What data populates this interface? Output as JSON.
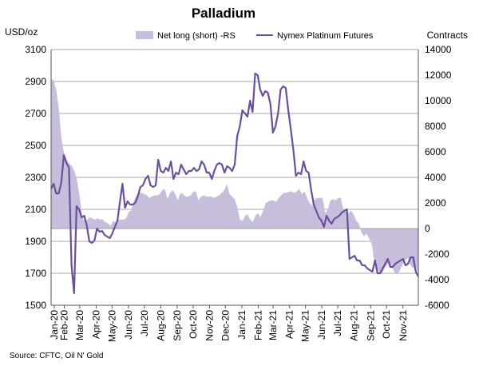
{
  "chart_data": {
    "type": "line",
    "title": "Palladium",
    "left_axis_unit": "USD/oz",
    "right_axis_unit": "Contracts",
    "source": "Source: CFTC, Oil N' Gold",
    "y_left": {
      "min": 1500,
      "max": 3100,
      "ticks": [
        "1500",
        "1700",
        "1900",
        "2100",
        "2300",
        "2500",
        "2700",
        "2900",
        "3100"
      ]
    },
    "y_right": {
      "min": -6000,
      "max": 14000,
      "ticks": [
        "-6000",
        "-4000",
        "-2000",
        "0",
        "2000",
        "4000",
        "6000",
        "8000",
        "10000",
        "12000",
        "14000"
      ]
    },
    "x_labels": [
      "Jan-20",
      "Feb-20",
      "Mar-20",
      "Apr-20",
      "May-20",
      "Jun-20",
      "Jul-20",
      "Aug-20",
      "Sep-20",
      "Oct-20",
      "Nov-20",
      "Dec-20",
      "Jan-21",
      "Feb-21",
      "Mar-21",
      "Apr-21",
      "May-21",
      "Jun-21",
      "Jul-21",
      "Aug-21",
      "Sep-21",
      "Oct-21",
      "Nov-21"
    ],
    "x_start": "2020-01-07",
    "x_end": "2021-11-30",
    "grid": true,
    "legend_position": "top",
    "series": [
      {
        "name": "Net long (short) -RS",
        "type": "area",
        "axis": "right",
        "color": "#c7bedb",
        "values": [
          11700,
          11600,
          10800,
          9400,
          7000,
          5900,
          5400,
          5100,
          4900,
          4500,
          3800,
          2600,
          900,
          600,
          700,
          900,
          800,
          700,
          800,
          700,
          700,
          500,
          400,
          200,
          600,
          500,
          700,
          700,
          700,
          800,
          1300,
          1400,
          2200,
          2600,
          2800,
          2800,
          2700,
          2600,
          2400,
          2500,
          2600,
          2600,
          2700,
          3000,
          3100,
          2300,
          2800,
          3000,
          2700,
          2200,
          2800,
          2700,
          2500,
          2500,
          2600,
          2900,
          2900,
          2200,
          2500,
          2600,
          2500,
          2500,
          2500,
          2400,
          2500,
          2600,
          2800,
          3000,
          3500,
          2700,
          2500,
          2300,
          1700,
          700,
          600,
          1000,
          1100,
          700,
          500,
          1000,
          1200,
          900,
          1400,
          2000,
          2100,
          2200,
          2200,
          2100,
          2400,
          2600,
          2800,
          2800,
          2900,
          2900,
          2800,
          2900,
          3100,
          2700,
          2900,
          2400,
          2000,
          1800,
          2300,
          2400,
          2400,
          2400,
          1200,
          1500,
          2200,
          2300,
          2200,
          2400,
          2400,
          1500,
          1300,
          1200,
          1400,
          1100,
          600,
          400,
          -300,
          -600,
          -400,
          -800,
          -1200,
          -2600,
          -3100,
          -3400,
          -3500,
          -3100,
          -2800,
          -2700,
          -3100,
          -3500,
          -3600,
          -3200,
          -2800,
          -2500,
          -2300,
          -2900,
          -3100,
          -2900,
          -3600
        ]
      },
      {
        "name": "Nymex Platinum Futures",
        "type": "line",
        "axis": "left",
        "color": "#6b4f9b",
        "values": [
          2230,
          2260,
          2200,
          2200,
          2270,
          2440,
          2390,
          2360,
          1750,
          1575,
          2120,
          2100,
          2050,
          2060,
          2000,
          1900,
          1890,
          1905,
          1980,
          1960,
          1965,
          1940,
          1930,
          1920,
          1950,
          1990,
          2030,
          2150,
          2260,
          2110,
          2150,
          2130,
          2130,
          2140,
          2180,
          2240,
          2250,
          2290,
          2310,
          2250,
          2240,
          2250,
          2410,
          2340,
          2330,
          2360,
          2340,
          2400,
          2290,
          2330,
          2320,
          2380,
          2350,
          2320,
          2340,
          2340,
          2360,
          2340,
          2350,
          2400,
          2380,
          2330,
          2330,
          2290,
          2340,
          2380,
          2390,
          2380,
          2330,
          2370,
          2360,
          2340,
          2380,
          2560,
          2620,
          2720,
          2700,
          2680,
          2780,
          2710,
          2950,
          2940,
          2850,
          2810,
          2840,
          2830,
          2760,
          2580,
          2620,
          2700,
          2850,
          2870,
          2860,
          2720,
          2600,
          2470,
          2310,
          2330,
          2320,
          2400,
          2340,
          2330,
          2220,
          2130,
          2090,
          2050,
          2030,
          1990,
          2060,
          2030,
          2010,
          2040,
          2050,
          2060,
          2080,
          2090,
          2100,
          1790,
          1800,
          1810,
          1780,
          1780,
          1750,
          1750,
          1730,
          1720,
          1710,
          1780,
          1700,
          1700,
          1730,
          1760,
          1790,
          1740,
          1740,
          1760,
          1770,
          1780,
          1790,
          1750,
          1760,
          1800,
          1800,
          1710,
          1680
        ]
      }
    ]
  }
}
